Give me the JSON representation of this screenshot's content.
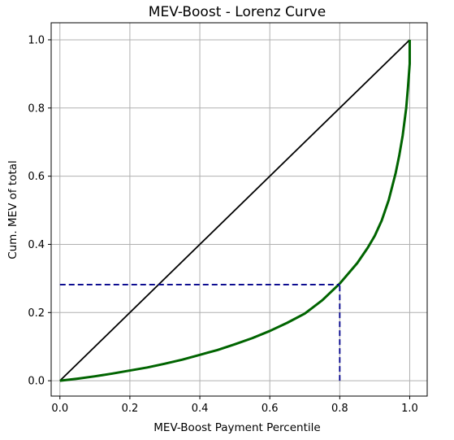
{
  "chart_data": {
    "type": "line",
    "title": "MEV-Boost - Lorenz Curve",
    "xlabel": "MEV-Boost Payment Percentile",
    "ylabel": "Cum. MEV of total",
    "xlim": [
      -0.025,
      1.05
    ],
    "ylim": [
      -0.045,
      1.05
    ],
    "xticks": [
      0.0,
      0.2,
      0.4,
      0.6,
      0.8,
      1.0
    ],
    "xtick_labels": [
      "0.0",
      "0.2",
      "0.4",
      "0.6",
      "0.8",
      "1.0"
    ],
    "yticks": [
      0.0,
      0.2,
      0.4,
      0.6,
      0.8,
      1.0
    ],
    "ytick_labels": [
      "0.0",
      "0.2",
      "0.4",
      "0.6",
      "0.8",
      "1.0"
    ],
    "grid": true,
    "series": [
      {
        "role": "equality-line",
        "color": "#000000",
        "style": "solid",
        "x": [
          0.0,
          1.0
        ],
        "y": [
          0.0,
          1.0
        ]
      },
      {
        "role": "lorenz-curve",
        "color": "#006400",
        "style": "solid",
        "x": [
          0.0,
          0.05,
          0.1,
          0.15,
          0.2,
          0.25,
          0.3,
          0.35,
          0.4,
          0.45,
          0.5,
          0.55,
          0.6,
          0.65,
          0.7,
          0.75,
          0.8,
          0.85,
          0.88,
          0.9,
          0.92,
          0.94,
          0.96,
          0.97,
          0.98,
          0.99,
          0.995,
          1.0,
          1.0
        ],
        "y": [
          0.0,
          0.006,
          0.013,
          0.021,
          0.03,
          0.039,
          0.05,
          0.062,
          0.076,
          0.09,
          0.107,
          0.125,
          0.146,
          0.17,
          0.197,
          0.236,
          0.285,
          0.345,
          0.39,
          0.425,
          0.47,
          0.53,
          0.61,
          0.66,
          0.72,
          0.8,
          0.86,
          0.93,
          1.0
        ]
      },
      {
        "role": "reference-horizontal",
        "color": "#00008b",
        "style": "dashed",
        "x": [
          0.0,
          0.8
        ],
        "y": [
          0.282,
          0.282
        ]
      },
      {
        "role": "reference-vertical",
        "color": "#00008b",
        "style": "dashed",
        "x": [
          0.8,
          0.8
        ],
        "y": [
          0.0,
          0.282
        ]
      }
    ]
  }
}
